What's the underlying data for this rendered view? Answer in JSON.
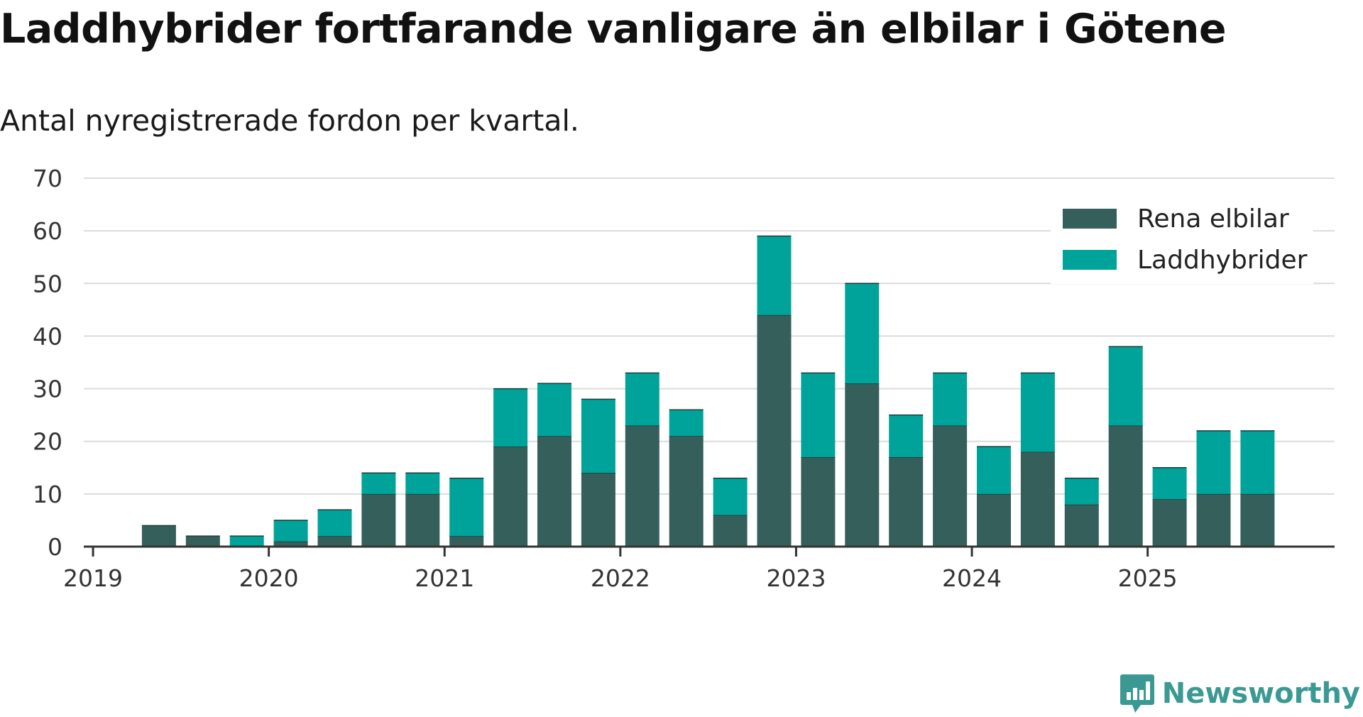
{
  "title": "Laddhybrider fortfarande vanligare än elbilar i Götene",
  "subtitle": "Antal nyregistrerade fordon per kvartal.",
  "brand": {
    "name": "Newsworthy",
    "icon": "newsworthy-logo-icon",
    "color": "#3a9a93"
  },
  "chart_data": {
    "type": "bar",
    "stacked": true,
    "title": "Laddhybrider fortfarande vanligare än elbilar i Götene",
    "subtitle": "Antal nyregistrerade fordon per kvartal.",
    "xlabel": "",
    "ylabel": "",
    "ylim": [
      0,
      70
    ],
    "yticks": [
      0,
      10,
      20,
      30,
      40,
      50,
      60,
      70
    ],
    "xtick_labels": [
      "2019",
      "2020",
      "2021",
      "2022",
      "2023",
      "2024",
      "2025"
    ],
    "categories": [
      "2019 Q1",
      "2019 Q2",
      "2019 Q3",
      "2019 Q4",
      "2020 Q1",
      "2020 Q2",
      "2020 Q3",
      "2020 Q4",
      "2021 Q1",
      "2021 Q2",
      "2021 Q3",
      "2021 Q4",
      "2022 Q1",
      "2022 Q2",
      "2022 Q3",
      "2022 Q4",
      "2023 Q1",
      "2023 Q2",
      "2023 Q3",
      "2023 Q4",
      "2024 Q1",
      "2024 Q2",
      "2024 Q3",
      "2024 Q4",
      "2025 Q1",
      "2025 Q2",
      "2025 Q3"
    ],
    "series": [
      {
        "name": "Rena elbilar",
        "color": "#345f5a",
        "values": [
          0,
          4,
          2,
          0,
          1,
          2,
          10,
          10,
          2,
          19,
          21,
          14,
          23,
          21,
          6,
          44,
          17,
          31,
          17,
          23,
          10,
          18,
          8,
          23,
          9,
          10,
          10
        ]
      },
      {
        "name": "Laddhybrider",
        "color": "#00a39a",
        "values": [
          0,
          0,
          0,
          2,
          4,
          5,
          4,
          4,
          11,
          11,
          10,
          14,
          10,
          5,
          7,
          15,
          16,
          19,
          8,
          10,
          9,
          15,
          5,
          15,
          6,
          12,
          12
        ]
      }
    ],
    "legend": {
      "position": "top-right"
    },
    "grid": true
  }
}
